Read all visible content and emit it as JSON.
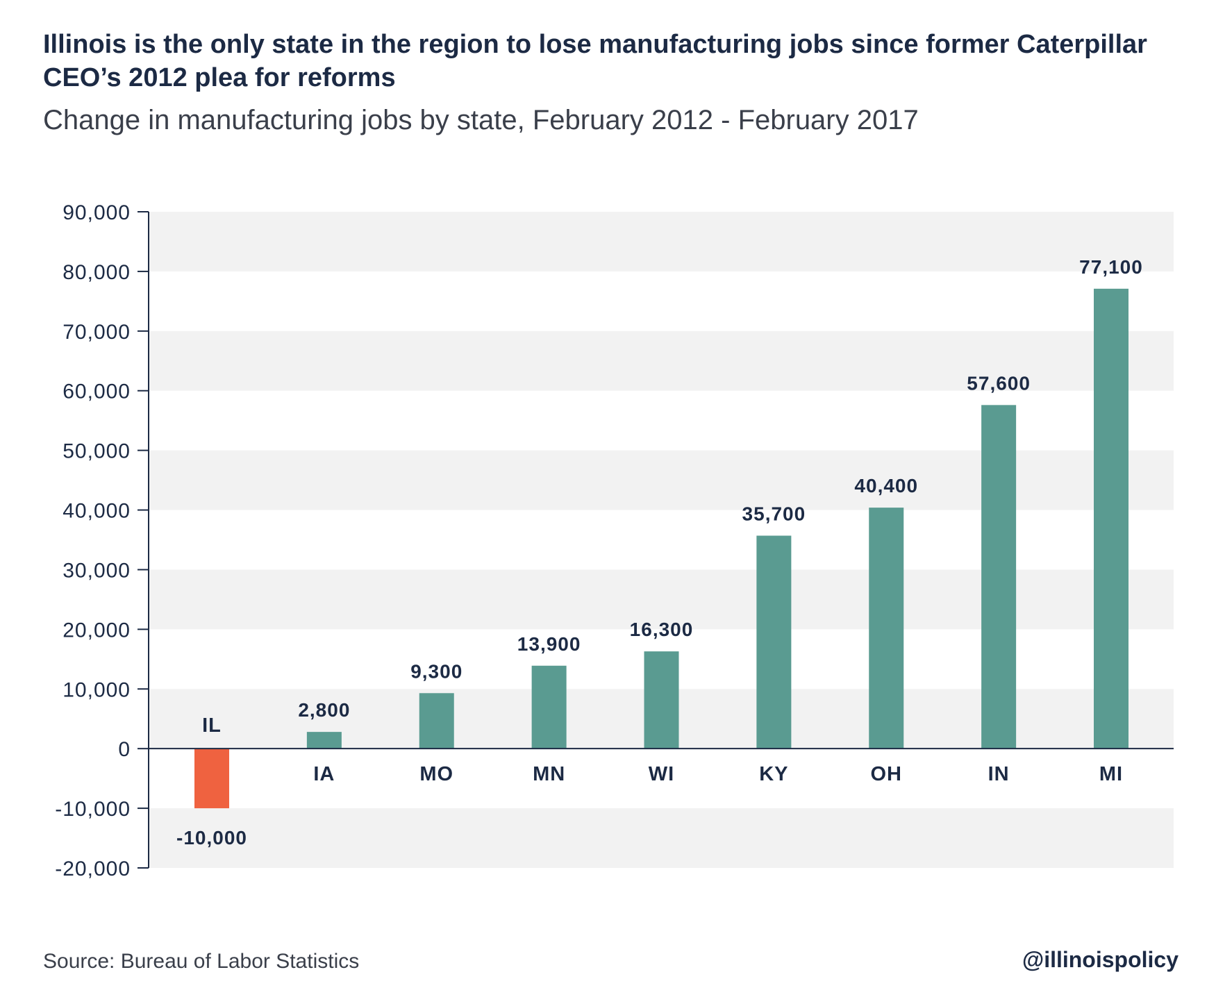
{
  "chart_data": {
    "type": "bar",
    "title": "Illinois is the only state in the region to lose manufacturing jobs since former Caterpillar CEO’s 2012 plea for reforms",
    "subtitle": "Change in manufacturing jobs by state, February 2012 - February 2017",
    "categories": [
      "IL",
      "IA",
      "MO",
      "MN",
      "WI",
      "KY",
      "OH",
      "IN",
      "MI"
    ],
    "values": [
      -10000,
      2800,
      9300,
      13900,
      16300,
      35700,
      40400,
      57600,
      77100
    ],
    "value_labels": [
      "-10,000",
      "2,800",
      "9,300",
      "13,900",
      "16,300",
      "35,700",
      "40,400",
      "57,600",
      "77,100"
    ],
    "ylim": [
      -20000,
      90000
    ],
    "yticks": [
      90000,
      80000,
      70000,
      60000,
      50000,
      40000,
      30000,
      20000,
      10000,
      0,
      -10000,
      -20000
    ],
    "ytick_labels": [
      "90,000",
      "80,000",
      "70,000",
      "60,000",
      "50,000",
      "40,000",
      "30,000",
      "20,000",
      "10,000",
      "0",
      "-10,000",
      "-20,000"
    ],
    "xlabel": "",
    "ylabel": "",
    "grid": "alternating horizontal bands",
    "legend": "none",
    "colors": {
      "positive": "#5a9b91",
      "negative": "#ef6240",
      "band": "#f2f2f2",
      "axis": "#1c2a44",
      "text": "#1c2a44"
    }
  },
  "footer": {
    "source": "Source: Bureau of Labor Statistics",
    "handle": "@illinoispolicy"
  }
}
